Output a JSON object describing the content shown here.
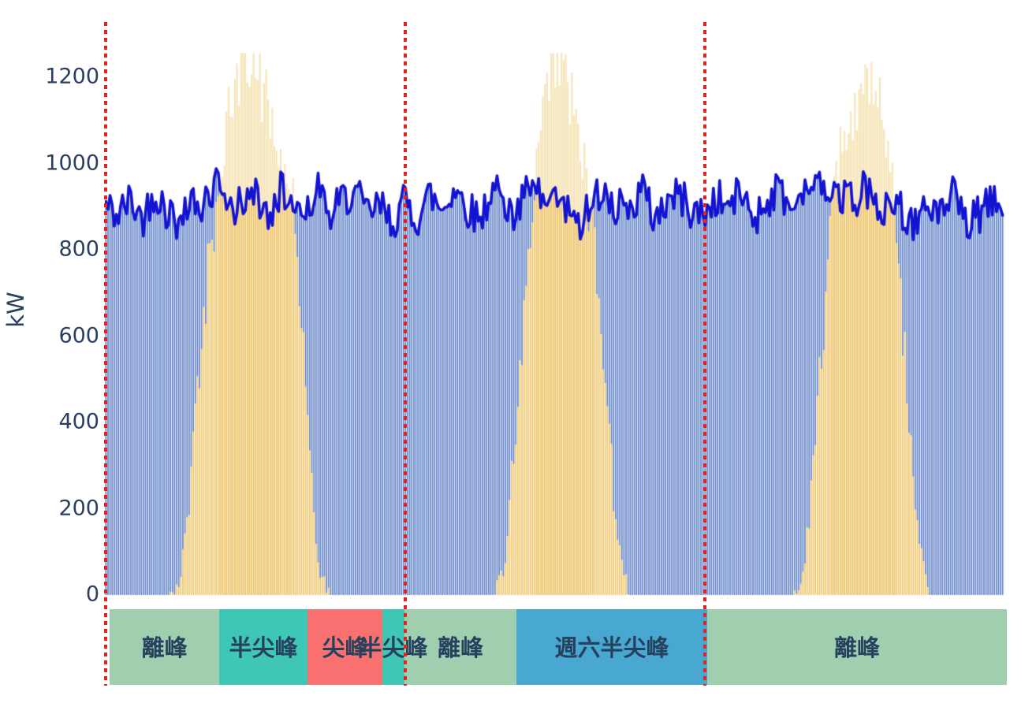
{
  "chart_data": {
    "type": "composite",
    "title": "",
    "xlabel": "",
    "ylabel": "kW",
    "yticks": [
      0,
      200,
      400,
      600,
      800,
      1000,
      1200
    ],
    "ylim": [
      0,
      1330
    ],
    "x_range_hours": [
      0,
      72
    ],
    "sample_minutes": 10,
    "grid": "off",
    "legend": "none",
    "series": [
      {
        "name": "load_kw",
        "type": "bar+line",
        "line_color": "#1313d2",
        "bar_color": "#6081c7",
        "line_width": 3.6,
        "approx_range_kw": [
          810,
          985
        ],
        "hourly": [
          905,
          878,
          916,
          872,
          936,
          890,
          860,
          926,
          906,
          946,
          882,
          916,
          934,
          870,
          938,
          906,
          892,
          946,
          872,
          916,
          936,
          882,
          902,
          862,
          912,
          872,
          930,
          892,
          946,
          900,
          870,
          938,
          916,
          882,
          946,
          912,
          930,
          890,
          862,
          920,
          936,
          900,
          882,
          946,
          872,
          912,
          930,
          890,
          882,
          920,
          900,
          936,
          872,
          912,
          946,
          890,
          920,
          952,
          900,
          930,
          912,
          946,
          882,
          920,
          890,
          862,
          912,
          872,
          930,
          852,
          882,
          906
        ]
      },
      {
        "name": "pv_bell_kw",
        "type": "bar",
        "color_above_load": "#f6e4b6",
        "color_below_load": "#eec46a",
        "peaks_kw": [
          1250,
          1255,
          1200
        ],
        "hourly": [
          0,
          0,
          0,
          0,
          0,
          0,
          30,
          300,
          680,
          920,
          1110,
          1235,
          1235,
          1140,
          1030,
          930,
          560,
          70,
          0,
          0,
          0,
          0,
          0,
          0,
          0,
          0,
          0,
          0,
          0,
          0,
          0,
          0,
          60,
          400,
          780,
          1080,
          1240,
          1190,
          1080,
          870,
          520,
          150,
          0,
          0,
          0,
          0,
          0,
          0,
          0,
          0,
          0,
          0,
          0,
          0,
          0,
          0,
          50,
          420,
          800,
          1020,
          1120,
          1195,
          1130,
          950,
          600,
          180,
          0,
          0,
          0,
          0,
          0,
          0
        ]
      }
    ],
    "noise": {
      "seed": 42,
      "load_jitter_kw": 46,
      "pv_jitter_top_kw": 85,
      "load_clamp_kw": [
        806,
        988
      ],
      "pv_max_kw": 1256
    },
    "day_boundaries_hours": [
      0,
      24,
      48
    ],
    "boundary_style": {
      "color": "#e3241e",
      "style": "dotted"
    },
    "period_band": {
      "text_color": "#26415e",
      "colors": {
        "offpeak": "#a0cfb0",
        "midpeak": "#3fc7b6",
        "peak": "#f87070",
        "sat_midpeak": "#49a8d2"
      },
      "segments": [
        {
          "label": "離峰",
          "kind": "offpeak",
          "start_h": 0.4,
          "end_h": 9.16
        },
        {
          "label": "半尖峰",
          "kind": "midpeak",
          "start_h": 9.16,
          "end_h": 16.23
        },
        {
          "label": "尖峰",
          "kind": "peak",
          "start_h": 16.23,
          "end_h": 22.23
        },
        {
          "label": "半尖峰",
          "kind": "midpeak",
          "start_h": 22.23,
          "end_h": 24.0
        },
        {
          "label": "離峰",
          "kind": "offpeak",
          "start_h": 24.0,
          "end_h": 32.97
        },
        {
          "label": "週六半尖峰",
          "kind": "sat_midpeak",
          "start_h": 32.97,
          "end_h": 48.25
        },
        {
          "label": "離峰",
          "kind": "offpeak",
          "start_h": 48.25,
          "end_h": 72.25
        }
      ]
    }
  }
}
